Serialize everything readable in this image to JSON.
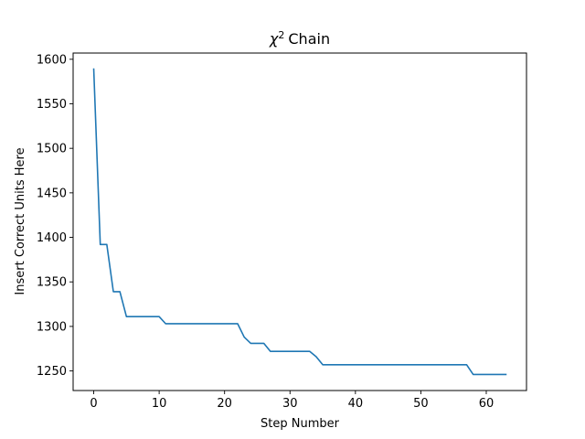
{
  "chart_data": {
    "type": "line",
    "title": {
      "symbol": "χ",
      "superscript": "2",
      "text": "Chain"
    },
    "xlabel": "Step Number",
    "ylabel": "Insert Correct Units Here",
    "xlim": [
      -3.15,
      66.15
    ],
    "ylim": [
      1228,
      1607
    ],
    "xticks": [
      0,
      10,
      20,
      30,
      40,
      50,
      60
    ],
    "yticks": [
      1250,
      1300,
      1350,
      1400,
      1450,
      1500,
      1550,
      1600
    ],
    "grid": false,
    "series": [
      {
        "color": "#1f77b4",
        "x": [
          0,
          1,
          2,
          3,
          4,
          5,
          6,
          7,
          8,
          9,
          10,
          11,
          12,
          13,
          14,
          15,
          16,
          17,
          18,
          19,
          20,
          21,
          22,
          23,
          24,
          25,
          26,
          27,
          28,
          29,
          30,
          31,
          32,
          33,
          34,
          35,
          36,
          37,
          38,
          39,
          40,
          41,
          42,
          43,
          44,
          45,
          46,
          47,
          48,
          49,
          50,
          51,
          52,
          53,
          54,
          55,
          56,
          57,
          58,
          59,
          60,
          61,
          62,
          63
        ],
        "y": [
          1589,
          1392,
          1392,
          1339,
          1339,
          1311,
          1311,
          1311,
          1311,
          1311,
          1311,
          1303,
          1303,
          1303,
          1303,
          1303,
          1303,
          1303,
          1303,
          1303,
          1303,
          1303,
          1303,
          1288,
          1281,
          1281,
          1281,
          1272,
          1272,
          1272,
          1272,
          1272,
          1272,
          1272,
          1266,
          1257,
          1257,
          1257,
          1257,
          1257,
          1257,
          1257,
          1257,
          1257,
          1257,
          1257,
          1257,
          1257,
          1257,
          1257,
          1257,
          1257,
          1257,
          1257,
          1257,
          1257,
          1257,
          1257,
          1246,
          1246,
          1246,
          1246,
          1246,
          1246
        ]
      }
    ]
  }
}
